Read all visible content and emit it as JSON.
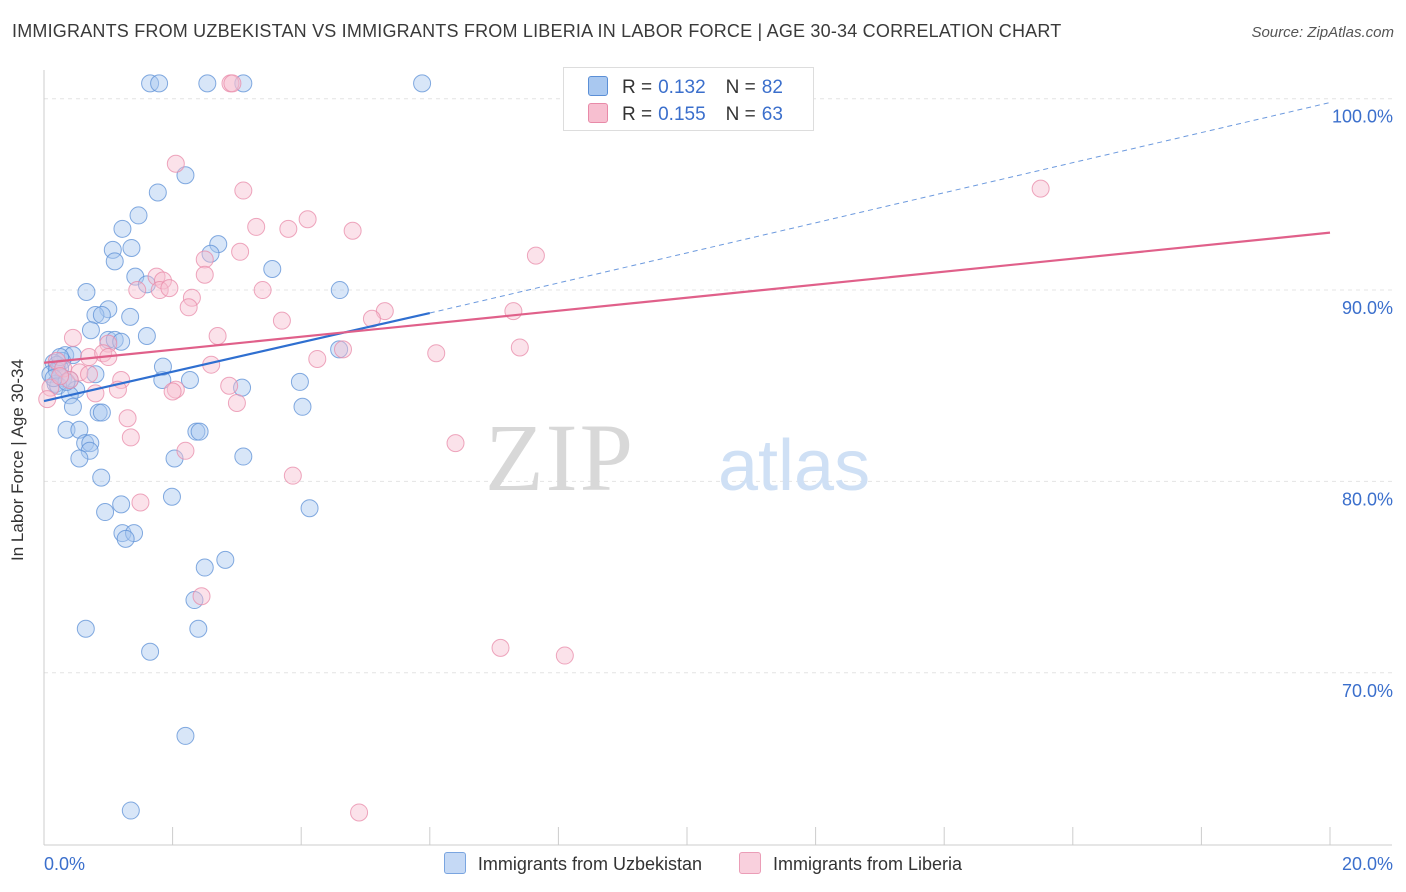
{
  "title": "IMMIGRANTS FROM UZBEKISTAN VS IMMIGRANTS FROM LIBERIA IN LABOR FORCE | AGE 30-34 CORRELATION CHART",
  "source": "Source: ZipAtlas.com",
  "watermark": {
    "zip": "ZIP",
    "atlas": "atlas"
  },
  "legend": {
    "r_label": "R =",
    "n_label": "N =",
    "rows": [
      {
        "r": "0.132",
        "n": "82"
      },
      {
        "r": "0.155",
        "n": "63"
      }
    ]
  },
  "colors": {
    "uzbekistan_fill": "#a9c8f0",
    "uzbekistan_stroke": "#5b8fd6",
    "uzbekistan_line": "#2f6fd0",
    "liberia_fill": "#f7bfd0",
    "liberia_stroke": "#e88aa8",
    "liberia_line": "#e0608a",
    "tick_label": "#3b6fcc",
    "grid": "#e4e4e4"
  },
  "chart_data": {
    "type": "scatter",
    "title": "IMMIGRANTS FROM UZBEKISTAN VS IMMIGRANTS FROM LIBERIA IN LABOR FORCE | AGE 30-34 CORRELATION CHART",
    "xlabel": "",
    "ylabel": "In Labor Force | Age 30-34",
    "xlim": [
      0,
      20
    ],
    "ylim": [
      61,
      101.5
    ],
    "x_ticks": [
      {
        "value": 0,
        "label": "0.0%"
      },
      {
        "value": 20,
        "label": "20.0%"
      }
    ],
    "y_ticks": [
      {
        "value": 70,
        "label": "70.0%"
      },
      {
        "value": 80,
        "label": "80.0%"
      },
      {
        "value": 90,
        "label": "90.0%"
      },
      {
        "value": 100,
        "label": "100.0%"
      }
    ],
    "grid": true,
    "legend_position": "top-center",
    "series": [
      {
        "name": "Immigrants from Uzbekistan",
        "R": 0.132,
        "N": 82,
        "trend": {
          "x": [
            0,
            6
          ],
          "y": [
            84.2,
            88.8
          ],
          "dashed_to": [
            20,
            99.8
          ]
        },
        "points": [
          [
            1.65,
            100.8
          ],
          [
            1.79,
            100.8
          ],
          [
            2.54,
            100.8
          ],
          [
            3.1,
            100.8
          ],
          [
            5.88,
            100.8
          ],
          [
            2.2,
            96.0
          ],
          [
            1.77,
            95.1
          ],
          [
            1.47,
            93.9
          ],
          [
            1.22,
            93.2
          ],
          [
            2.71,
            92.4
          ],
          [
            1.07,
            92.1
          ],
          [
            1.36,
            92.2
          ],
          [
            2.59,
            91.9
          ],
          [
            1.1,
            91.5
          ],
          [
            3.55,
            91.1
          ],
          [
            1.42,
            90.7
          ],
          [
            1.6,
            90.3
          ],
          [
            0.66,
            89.9
          ],
          [
            4.6,
            90.0
          ],
          [
            1.0,
            89.0
          ],
          [
            0.8,
            88.7
          ],
          [
            0.9,
            88.7
          ],
          [
            1.34,
            88.6
          ],
          [
            0.73,
            87.9
          ],
          [
            1.6,
            87.6
          ],
          [
            1.0,
            87.4
          ],
          [
            1.1,
            87.4
          ],
          [
            4.59,
            86.9
          ],
          [
            0.33,
            86.6
          ],
          [
            0.45,
            86.6
          ],
          [
            0.28,
            86.3
          ],
          [
            0.15,
            86.2
          ],
          [
            0.2,
            86.1
          ],
          [
            0.25,
            85.9
          ],
          [
            0.1,
            85.6
          ],
          [
            0.3,
            85.4
          ],
          [
            0.4,
            85.3
          ],
          [
            0.18,
            85.1
          ],
          [
            0.22,
            85.0
          ],
          [
            0.5,
            84.8
          ],
          [
            0.4,
            84.5
          ],
          [
            0.8,
            85.6
          ],
          [
            1.84,
            85.3
          ],
          [
            1.85,
            86.0
          ],
          [
            2.27,
            85.3
          ],
          [
            3.98,
            85.2
          ],
          [
            3.08,
            84.9
          ],
          [
            0.45,
            83.9
          ],
          [
            0.85,
            83.6
          ],
          [
            0.9,
            83.6
          ],
          [
            4.02,
            83.9
          ],
          [
            0.35,
            82.7
          ],
          [
            0.55,
            82.7
          ],
          [
            2.37,
            82.6
          ],
          [
            2.42,
            82.6
          ],
          [
            0.64,
            82.0
          ],
          [
            0.72,
            82.0
          ],
          [
            0.71,
            81.6
          ],
          [
            0.55,
            81.2
          ],
          [
            2.03,
            81.2
          ],
          [
            3.1,
            81.3
          ],
          [
            0.89,
            80.2
          ],
          [
            1.99,
            79.2
          ],
          [
            1.2,
            78.8
          ],
          [
            0.95,
            78.4
          ],
          [
            4.13,
            78.6
          ],
          [
            1.22,
            77.3
          ],
          [
            1.4,
            77.3
          ],
          [
            1.27,
            77.0
          ],
          [
            2.82,
            75.9
          ],
          [
            2.5,
            75.5
          ],
          [
            2.34,
            73.8
          ],
          [
            2.4,
            72.3
          ],
          [
            0.65,
            72.3
          ],
          [
            1.65,
            71.1
          ],
          [
            2.2,
            66.7
          ],
          [
            1.35,
            62.8
          ],
          [
            0.2,
            85.8
          ],
          [
            0.35,
            85.2
          ],
          [
            0.25,
            86.5
          ],
          [
            0.15,
            85.4
          ],
          [
            1.2,
            87.3
          ]
        ]
      },
      {
        "name": "Immigrants from Liberia",
        "R": 0.155,
        "N": 63,
        "trend": {
          "x": [
            0,
            20
          ],
          "y": [
            86.2,
            93.0
          ]
        },
        "points": [
          [
            2.9,
            100.8
          ],
          [
            2.93,
            100.8
          ],
          [
            11.1,
            100.8
          ],
          [
            11.2,
            100.8
          ],
          [
            2.05,
            96.6
          ],
          [
            3.1,
            95.2
          ],
          [
            15.5,
            95.3
          ],
          [
            4.1,
            93.7
          ],
          [
            3.3,
            93.3
          ],
          [
            3.8,
            93.2
          ],
          [
            4.8,
            93.1
          ],
          [
            3.05,
            92.0
          ],
          [
            2.5,
            91.6
          ],
          [
            7.65,
            91.8
          ],
          [
            1.75,
            90.7
          ],
          [
            1.85,
            90.5
          ],
          [
            2.5,
            90.8
          ],
          [
            1.45,
            90.0
          ],
          [
            1.8,
            90.0
          ],
          [
            1.95,
            90.1
          ],
          [
            3.4,
            90.0
          ],
          [
            2.3,
            89.6
          ],
          [
            2.25,
            89.1
          ],
          [
            5.3,
            88.9
          ],
          [
            5.1,
            88.5
          ],
          [
            3.7,
            88.4
          ],
          [
            7.3,
            88.9
          ],
          [
            2.7,
            87.6
          ],
          [
            0.45,
            87.5
          ],
          [
            1.0,
            87.2
          ],
          [
            7.4,
            87.0
          ],
          [
            4.65,
            86.9
          ],
          [
            6.1,
            86.7
          ],
          [
            0.7,
            86.5
          ],
          [
            0.92,
            86.7
          ],
          [
            1.0,
            86.5
          ],
          [
            4.25,
            86.4
          ],
          [
            2.6,
            86.1
          ],
          [
            0.2,
            86.3
          ],
          [
            0.3,
            85.9
          ],
          [
            0.55,
            85.7
          ],
          [
            0.7,
            85.6
          ],
          [
            0.4,
            85.3
          ],
          [
            1.2,
            85.3
          ],
          [
            2.88,
            85.0
          ],
          [
            2.05,
            84.8
          ],
          [
            0.8,
            84.6
          ],
          [
            1.15,
            84.8
          ],
          [
            2.0,
            84.7
          ],
          [
            0.1,
            84.9
          ],
          [
            0.05,
            84.3
          ],
          [
            3.0,
            84.1
          ],
          [
            1.3,
            83.3
          ],
          [
            1.35,
            82.3
          ],
          [
            6.4,
            82.0
          ],
          [
            2.2,
            81.6
          ],
          [
            3.87,
            80.3
          ],
          [
            1.5,
            78.9
          ],
          [
            2.45,
            74.0
          ],
          [
            7.1,
            71.3
          ],
          [
            8.1,
            70.9
          ],
          [
            4.9,
            62.7
          ],
          [
            0.25,
            85.5
          ]
        ]
      }
    ]
  }
}
